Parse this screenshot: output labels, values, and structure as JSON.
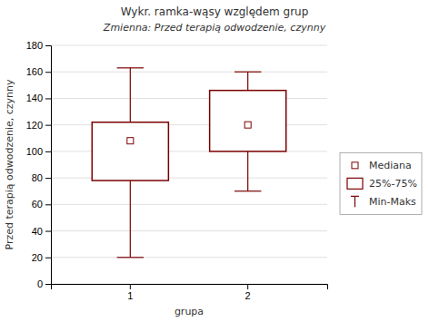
{
  "chart_data": {
    "type": "box",
    "title": "Wykr. ramka-wąsy względem grup",
    "subtitle": "Zmienna:  Przed terapią odwodzenie, czynny",
    "x_label": "grupa",
    "y_label": "Przed terapią odwodzenie, czynny",
    "categories": [
      "1",
      "2"
    ],
    "min": [
      20,
      70
    ],
    "q1": [
      78,
      100
    ],
    "median": [
      108,
      120
    ],
    "q3": [
      122,
      146
    ],
    "max": [
      163,
      160
    ],
    "color": "#7b0000",
    "legend_labels": [
      "Mediana",
      "25%-75%",
      "Min-Maks"
    ],
    "legend": "right",
    "ylim": [
      0,
      180
    ],
    "yticks": [
      0,
      20,
      40,
      60,
      80,
      100,
      120,
      140,
      160,
      180
    ],
    "grid": "y"
  }
}
